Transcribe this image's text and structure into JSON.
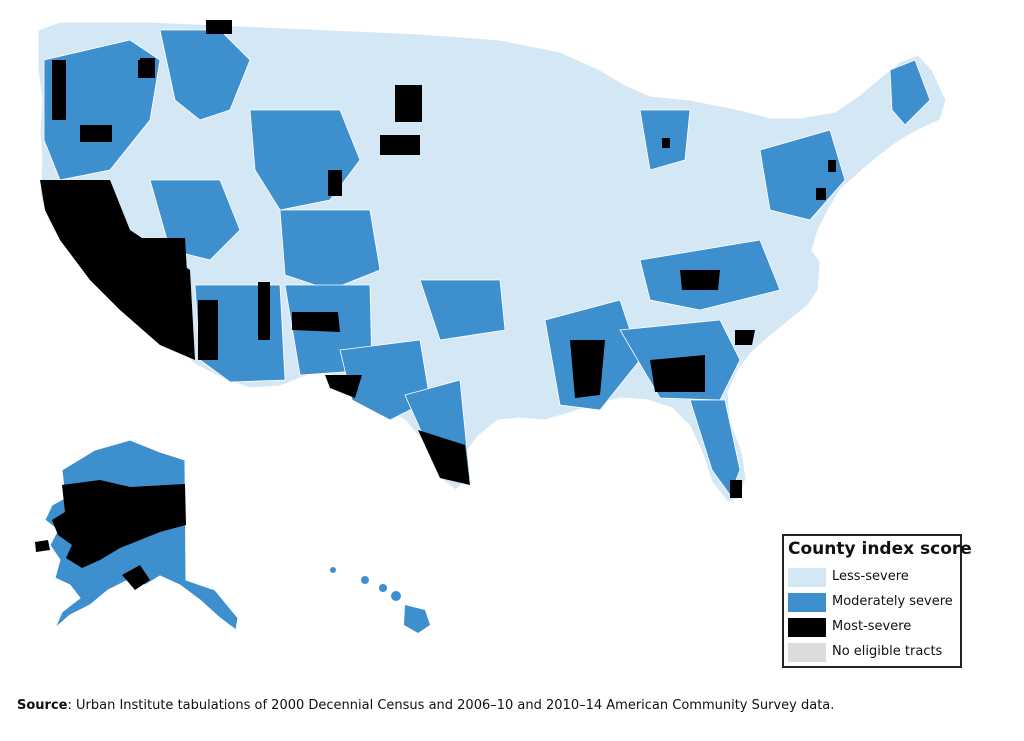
{
  "legend": {
    "title": "County index score",
    "items": [
      {
        "label": "Less-severe",
        "color": "#d4e7f5"
      },
      {
        "label": "Moderately severe",
        "color": "#3e8fce"
      },
      {
        "label": "Most-severe",
        "color": "#000000"
      },
      {
        "label": "No eligible tracts",
        "color": "#dcdcdc"
      }
    ]
  },
  "source": {
    "label": "Source",
    "text": ": Urban Institute tabulations of 2000 Decennial Census and 2006–10 and 2010–14 American Community Survey data."
  },
  "colors": {
    "less_severe": "#d4e7f5",
    "moderate": "#3e8fce",
    "most_severe": "#000000",
    "border": "#ffffff"
  }
}
